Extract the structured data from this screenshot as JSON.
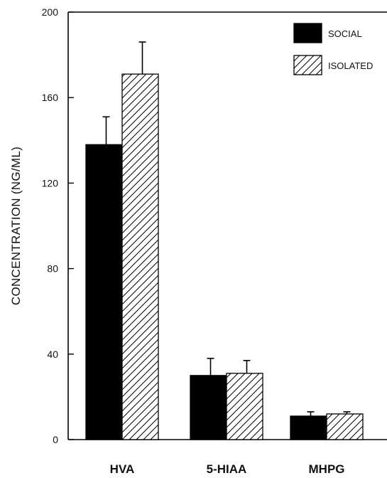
{
  "chart_data": {
    "type": "bar",
    "categories": [
      "HVA",
      "5-HIAA",
      "MHPG"
    ],
    "series": [
      {
        "name": "SOCIAL",
        "fill": "solid",
        "color": "#000000",
        "values": [
          138,
          30,
          11
        ],
        "errors": [
          13,
          8,
          2
        ]
      },
      {
        "name": "ISOLATED",
        "fill": "hatched",
        "color": "#000000",
        "values": [
          171,
          31,
          12
        ],
        "errors": [
          15,
          6,
          1
        ]
      }
    ],
    "title": "",
    "xlabel": "",
    "ylabel": "CONCENTRATION (NG/ML)",
    "ylim": [
      0,
      200
    ],
    "yticks": [
      0,
      40,
      80,
      120,
      160,
      200
    ],
    "grid": false,
    "legend_position": "top-right"
  }
}
